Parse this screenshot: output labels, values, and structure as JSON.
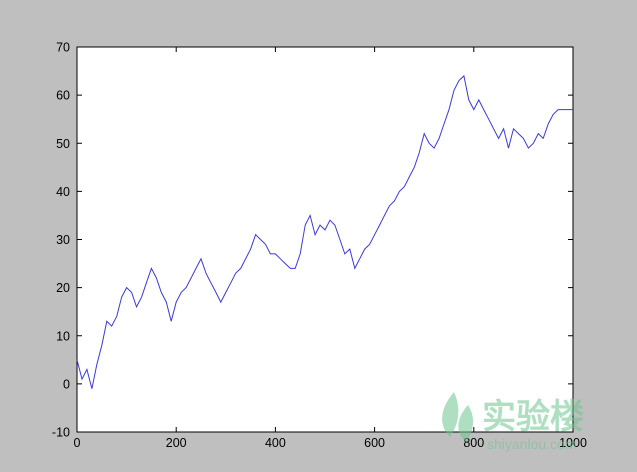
{
  "colors": {
    "window_bg": "#bfbfbf",
    "plot_bg": "#ffffff",
    "line": "#3a3ad6",
    "watermark": "#6cc58f"
  },
  "watermark": {
    "icon": "leaf-logo-icon",
    "text_cn": "实验楼",
    "text_en": "shiyanlou.com"
  },
  "chart_data": {
    "type": "line",
    "title": "",
    "xlabel": "",
    "ylabel": "",
    "xlim": [
      0,
      1000
    ],
    "ylim": [
      -10,
      70
    ],
    "grid": false,
    "x_ticks": [
      "0",
      "200",
      "400",
      "600",
      "800",
      "1000"
    ],
    "y_ticks": [
      "-10",
      "0",
      "10",
      "20",
      "30",
      "40",
      "50",
      "60",
      "70"
    ],
    "series": [
      {
        "x": [
          0,
          10,
          20,
          30,
          40,
          50,
          60,
          70,
          80,
          90,
          100,
          110,
          120,
          130,
          140,
          150,
          160,
          170,
          180,
          190,
          200,
          210,
          220,
          230,
          240,
          250,
          260,
          270,
          280,
          290,
          300,
          310,
          320,
          330,
          340,
          350,
          360,
          370,
          380,
          390,
          400,
          410,
          420,
          430,
          440,
          450,
          460,
          470,
          480,
          490,
          500,
          510,
          520,
          530,
          540,
          550,
          560,
          570,
          580,
          590,
          600,
          610,
          620,
          630,
          640,
          650,
          660,
          670,
          680,
          690,
          700,
          710,
          720,
          730,
          740,
          750,
          760,
          770,
          780,
          790,
          800,
          810,
          820,
          830,
          840,
          850,
          860,
          870,
          880,
          890,
          900,
          910,
          920,
          930,
          940,
          950,
          960,
          970,
          980,
          990,
          1000
        ],
        "y": [
          5,
          1,
          3,
          -1,
          4,
          8,
          13,
          12,
          14,
          18,
          20,
          19,
          16,
          18,
          21,
          24,
          22,
          19,
          17,
          13,
          17,
          19,
          20,
          22,
          24,
          26,
          23,
          21,
          19,
          17,
          19,
          21,
          23,
          24,
          26,
          28,
          31,
          30,
          29,
          27,
          27,
          26,
          25,
          24,
          24,
          27,
          33,
          35,
          31,
          33,
          32,
          34,
          33,
          30,
          27,
          28,
          24,
          26,
          28,
          29,
          31,
          33,
          35,
          37,
          38,
          40,
          41,
          43,
          45,
          48,
          52,
          50,
          49,
          51,
          54,
          57,
          61,
          63,
          64,
          59,
          57,
          59,
          57,
          55,
          53,
          51,
          53,
          49,
          53,
          52,
          51,
          49,
          50,
          52,
          51,
          54,
          56,
          57,
          57,
          57,
          57
        ]
      }
    ]
  }
}
